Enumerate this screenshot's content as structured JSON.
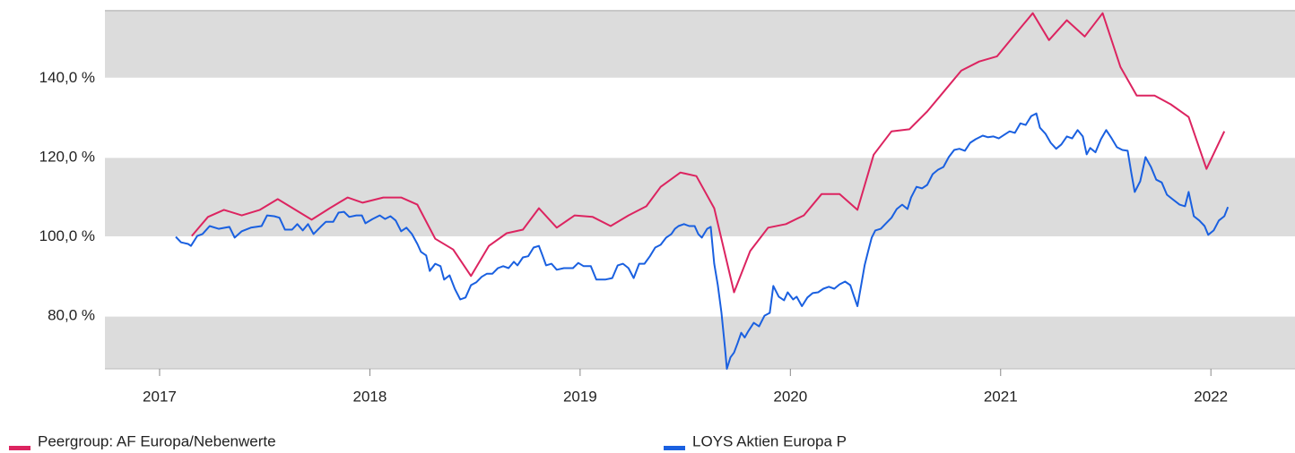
{
  "chart_data": {
    "type": "line",
    "xlim": [
      2016.74,
      2022.4
    ],
    "xticks": [
      2017,
      2018,
      2019,
      2020,
      2021,
      2022
    ],
    "ylim": [
      66.7,
      157
    ],
    "yticks": [
      {
        "value": 80,
        "label": "80,0 %"
      },
      {
        "value": 100,
        "label": "100,0 %"
      },
      {
        "value": 120,
        "label": "120,0 %"
      },
      {
        "value": 140,
        "label": "140,0 %"
      }
    ],
    "grid": true,
    "legend": "bottom",
    "series": [
      {
        "name": "Peergroup: AF Europa/Nebenwerte",
        "color": "#dc2460",
        "x": [
          2017.153,
          2017.23,
          2017.306,
          2017.391,
          2017.477,
          2017.562,
          2017.723,
          2017.809,
          2017.894,
          2017.966,
          2018.064,
          2018.149,
          2018.226,
          2018.311,
          2018.396,
          2018.481,
          2018.566,
          2018.651,
          2018.728,
          2018.804,
          2018.889,
          2018.974,
          2019.06,
          2019.145,
          2019.23,
          2019.315,
          2019.383,
          2019.477,
          2019.553,
          2019.638,
          2019.732,
          2019.809,
          2019.894,
          2019.979,
          2020.064,
          2020.149,
          2020.234,
          2020.319,
          2020.396,
          2020.481,
          2020.566,
          2020.651,
          2020.728,
          2020.813,
          2020.898,
          2020.983,
          2021.068,
          2021.153,
          2021.23,
          2021.315,
          2021.4,
          2021.485,
          2021.57,
          2021.647,
          2021.732,
          2021.809,
          2021.894,
          2021.979,
          2022.064
        ],
        "values": [
          100.2,
          105,
          106.8,
          105.4,
          106.8,
          109.5,
          104.3,
          107.2,
          109.9,
          108.6,
          109.9,
          109.9,
          108.1,
          99.5,
          96.8,
          90.1,
          97.7,
          100.9,
          101.8,
          107.2,
          102.3,
          105.4,
          105,
          102.7,
          105.4,
          107.7,
          112.6,
          116.2,
          115.3,
          107.2,
          86,
          96.4,
          102.3,
          103.2,
          105.4,
          110.8,
          110.8,
          106.8,
          120.7,
          126.6,
          127.1,
          131.6,
          136.5,
          141.9,
          144.2,
          145.5,
          151,
          156.4,
          149.6,
          154.6,
          150.5,
          156.4,
          142.8,
          135.6,
          135.6,
          133.4,
          130.2,
          117.1,
          126.6
        ]
      },
      {
        "name": "LOYS Aktien Europa P",
        "color": "#1a60e0",
        "x": [
          2017.077,
          2017.102,
          2017.136,
          2017.149,
          2017.179,
          2017.204,
          2017.238,
          2017.281,
          2017.332,
          2017.357,
          2017.391,
          2017.434,
          2017.485,
          2017.511,
          2017.545,
          2017.57,
          2017.596,
          2017.63,
          2017.655,
          2017.681,
          2017.706,
          2017.732,
          2017.766,
          2017.791,
          2017.826,
          2017.851,
          2017.877,
          2017.902,
          2017.936,
          2017.962,
          2017.979,
          2018.013,
          2018.047,
          2018.072,
          2018.098,
          2018.123,
          2018.149,
          2018.174,
          2018.2,
          2018.226,
          2018.243,
          2018.268,
          2018.285,
          2018.311,
          2018.336,
          2018.353,
          2018.379,
          2018.404,
          2018.43,
          2018.455,
          2018.481,
          2018.506,
          2018.532,
          2018.557,
          2018.583,
          2018.609,
          2018.634,
          2018.66,
          2018.685,
          2018.702,
          2018.728,
          2018.753,
          2018.779,
          2018.804,
          2018.821,
          2018.838,
          2018.864,
          2018.889,
          2018.923,
          2018.966,
          2018.991,
          2019.017,
          2019.051,
          2019.077,
          2019.119,
          2019.153,
          2019.179,
          2019.204,
          2019.23,
          2019.255,
          2019.281,
          2019.306,
          2019.332,
          2019.357,
          2019.383,
          2019.409,
          2019.434,
          2019.451,
          2019.468,
          2019.494,
          2019.519,
          2019.545,
          2019.562,
          2019.579,
          2019.604,
          2019.621,
          2019.638,
          2019.655,
          2019.672,
          2019.689,
          2019.698,
          2019.715,
          2019.732,
          2019.749,
          2019.766,
          2019.783,
          2019.8,
          2019.826,
          2019.851,
          2019.877,
          2019.902,
          2019.919,
          2019.945,
          2019.97,
          2019.987,
          2020.013,
          2020.03,
          2020.055,
          2020.081,
          2020.106,
          2020.132,
          2020.157,
          2020.183,
          2020.209,
          2020.234,
          2020.26,
          2020.285,
          2020.302,
          2020.319,
          2020.336,
          2020.353,
          2020.37,
          2020.387,
          2020.404,
          2020.43,
          2020.455,
          2020.481,
          2020.506,
          2020.532,
          2020.557,
          2020.574,
          2020.6,
          2020.626,
          2020.651,
          2020.677,
          2020.702,
          2020.728,
          2020.753,
          2020.779,
          2020.804,
          2020.83,
          2020.855,
          2020.881,
          2020.915,
          2020.94,
          2020.966,
          2020.991,
          2021.017,
          2021.043,
          2021.068,
          2021.094,
          2021.119,
          2021.145,
          2021.17,
          2021.187,
          2021.213,
          2021.238,
          2021.264,
          2021.289,
          2021.315,
          2021.34,
          2021.366,
          2021.391,
          2021.409,
          2021.426,
          2021.451,
          2021.477,
          2021.502,
          2021.528,
          2021.553,
          2021.579,
          2021.604,
          2021.621,
          2021.638,
          2021.664,
          2021.689,
          2021.715,
          2021.74,
          2021.766,
          2021.791,
          2021.817,
          2021.851,
          2021.877,
          2021.894,
          2021.919,
          2021.945,
          2021.97,
          2021.987,
          2022.013,
          2022.038,
          2022.064,
          2022.081
        ],
        "values": [
          100.0,
          98.6,
          98.2,
          97.7,
          100.2,
          100.7,
          102.7,
          102.0,
          102.5,
          99.8,
          101.4,
          102.3,
          102.7,
          105.4,
          105.2,
          104.8,
          101.8,
          101.8,
          103.2,
          101.6,
          103.2,
          100.7,
          102.5,
          103.8,
          103.8,
          106.1,
          106.3,
          105.0,
          105.4,
          105.4,
          103.4,
          104.5,
          105.4,
          104.5,
          105.2,
          104.1,
          101.4,
          102.3,
          100.7,
          98.2,
          96.2,
          95.3,
          91.4,
          93.2,
          92.6,
          89.2,
          90.3,
          86.9,
          84.2,
          84.7,
          87.8,
          88.5,
          89.9,
          90.7,
          90.7,
          92.1,
          92.6,
          92.1,
          93.7,
          92.8,
          94.8,
          95.1,
          97.3,
          97.7,
          95.3,
          92.8,
          93.2,
          91.7,
          92.1,
          92.1,
          93.4,
          92.6,
          92.6,
          89.2,
          89.2,
          89.6,
          92.8,
          93.2,
          92.1,
          89.6,
          93.2,
          93.2,
          95.1,
          97.3,
          98.0,
          99.8,
          100.7,
          102.0,
          102.7,
          103.2,
          102.7,
          102.7,
          100.7,
          99.8,
          102.0,
          102.5,
          93.2,
          87.8,
          81.0,
          72.0,
          66.7,
          69.6,
          70.8,
          73.2,
          75.8,
          74.6,
          76.2,
          78.3,
          77.4,
          80.1,
          80.8,
          87.6,
          84.9,
          84.0,
          86.0,
          84.2,
          84.9,
          82.5,
          84.7,
          85.8,
          86.0,
          86.9,
          87.4,
          86.9,
          88.0,
          88.7,
          87.8,
          85.1,
          82.5,
          87.6,
          92.8,
          96.4,
          99.8,
          101.6,
          102.0,
          103.4,
          104.8,
          107.0,
          108.1,
          107.0,
          109.9,
          112.6,
          112.2,
          113.1,
          115.8,
          116.9,
          117.6,
          120.1,
          121.9,
          122.2,
          121.7,
          123.7,
          124.6,
          125.5,
          125.1,
          125.3,
          124.8,
          125.7,
          126.6,
          126.2,
          128.6,
          128.2,
          130.4,
          131.1,
          127.5,
          126.0,
          123.7,
          122.2,
          123.3,
          125.3,
          124.8,
          126.9,
          125.3,
          120.8,
          122.4,
          121.3,
          124.6,
          126.9,
          124.8,
          122.6,
          121.9,
          121.7,
          116.2,
          111.3,
          114.0,
          120.1,
          117.6,
          114.4,
          113.7,
          110.6,
          109.5,
          108.1,
          107.7,
          111.3,
          105.2,
          104.1,
          102.7,
          100.5,
          101.6,
          104.1,
          105.2,
          107.5
        ]
      }
    ]
  }
}
